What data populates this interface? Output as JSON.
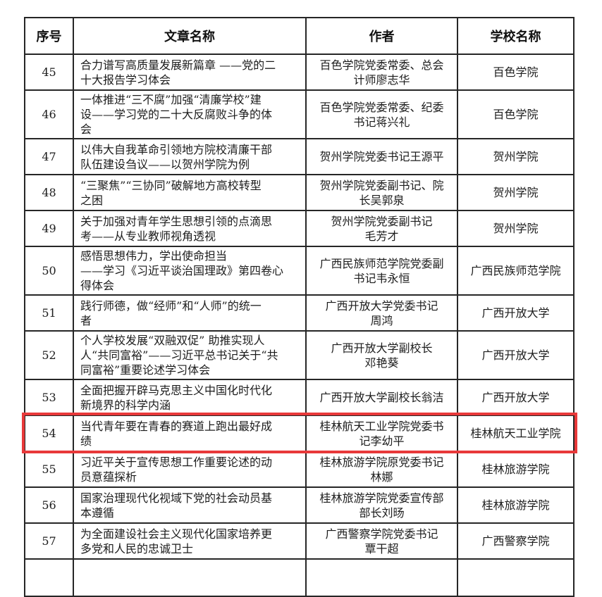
{
  "page": {
    "background": "#ffffff"
  },
  "highlight": {
    "row_no": "54",
    "color": "#e8393a"
  },
  "table": {
    "grid_color": "#262626",
    "columns": [
      {
        "key": "no",
        "label": "序号"
      },
      {
        "key": "article",
        "label": "文章名称"
      },
      {
        "key": "author",
        "label": "作者"
      },
      {
        "key": "school",
        "label": "学校名称"
      }
    ],
    "rows": [
      {
        "no": "45",
        "article": "合力谱写高质量发展新篇章 ——党的二\n十大报告学习体会",
        "author": "百色学院党委常委、总会\n计师廖志华",
        "school": "百色学院"
      },
      {
        "no": "46",
        "article": "一体推进“三不腐”加强“清廉学校”建\n设——学习党的二十大反腐败斗争的体\n会",
        "author": "百色学院党委常委、纪委\n书记蒋兴礼",
        "school": "百色学院"
      },
      {
        "no": "47",
        "article": "以伟大自我革命引领地方院校清廉干部\n队伍建设刍议——以贺州学院为例",
        "author": "贺州学院党委书记王源平",
        "school": "贺州学院"
      },
      {
        "no": "48",
        "article": "“三聚焦”“三协同”破解地方高校转型\n之困",
        "author": "贺州学院党委副书记、院\n长吴郭泉",
        "school": "贺州学院"
      },
      {
        "no": "49",
        "article": "关于加强对青年学生思想引领的点滴思\n考——从专业教师视角透视",
        "author": "贺州学院党委副书记\n毛芳才",
        "school": "贺州学院"
      },
      {
        "no": "50",
        "article": "感悟思想伟力，学出使命担当\n——学习《习近平谈治国理政》第四卷心\n得体会",
        "author": "广西民族师范学院党委副\n书记韦永恒",
        "school": "广西民族师范学院"
      },
      {
        "no": "51",
        "article": "践行师德，做“经师”和“人师”的统一\n者",
        "author": "广西开放大学党委书记\n周鸿",
        "school": "广西开放大学"
      },
      {
        "no": "52",
        "article": "个人学校发展“双融双促” 助推实现人\n人“共同富裕”——习近平总书记关于“共\n同富裕”重要论述学习体会",
        "author": "广西开放大学副校长\n邓艳葵",
        "school": "广西开放大学"
      },
      {
        "no": "53",
        "article": "全面把握开辟马克思主义中国化时代化\n新境界的科学内涵",
        "author": "广西开放大学副校长翁洁",
        "school": "广西开放大学"
      },
      {
        "no": "54",
        "article": "当代青年要在青春的赛道上跑出最好成\n绩",
        "author": "桂林航天工业学院党委书\n记李幼平",
        "school": "桂林航天工业学院"
      },
      {
        "no": "55",
        "article": "习近平关于宣传思想工作重要论述的动\n员意蕴探析",
        "author": "桂林旅游学院原党委书记\n林娜",
        "school": "桂林旅游学院"
      },
      {
        "no": "56",
        "article": "国家治理现代化视域下党的社会动员基\n本遵循",
        "author": "桂林旅游学院党委宣传部\n部长刘旸",
        "school": "桂林旅游学院"
      },
      {
        "no": "57",
        "article": "为全面建设社会主义现代化国家培养更\n多党和人民的忠诚卫士",
        "author": "广西警察学院党委书记\n覃干超",
        "school": "广西警察学院"
      }
    ]
  }
}
